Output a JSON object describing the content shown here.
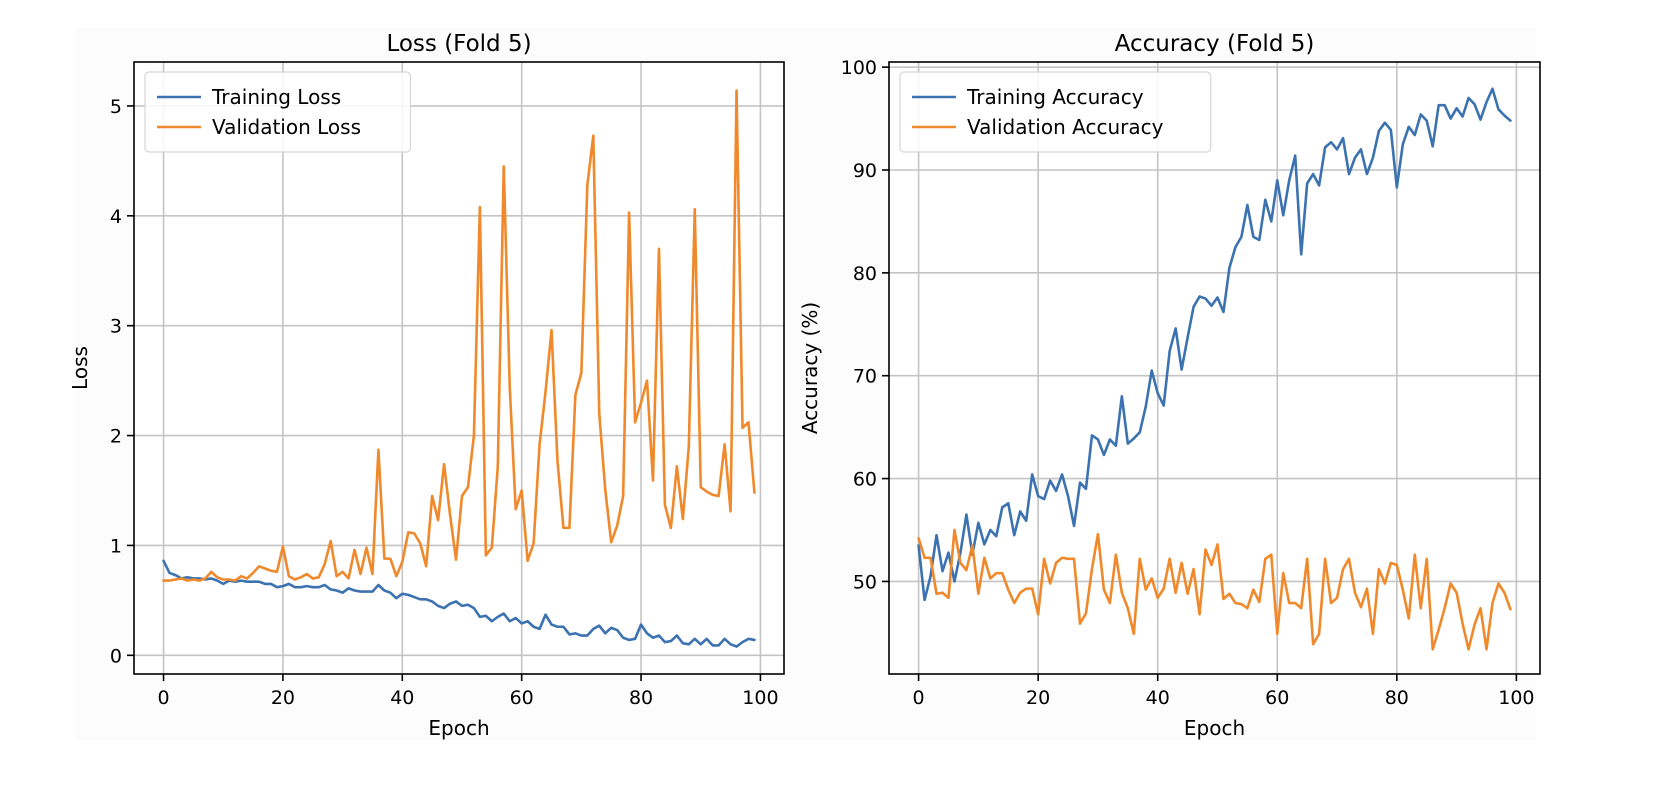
{
  "chart_data": [
    {
      "type": "line",
      "title": "Loss (Fold 5)",
      "xlabel": "Epoch",
      "ylabel": "Loss",
      "xlim": [
        -4.95,
        103.95
      ],
      "ylim": [
        -0.17,
        5.4
      ],
      "xticks": [
        0,
        20,
        40,
        60,
        80,
        100
      ],
      "yticks": [
        0,
        1,
        2,
        3,
        4,
        5
      ],
      "grid": true,
      "legend_position": "upper left",
      "series": [
        {
          "name": "Training Loss",
          "color": "#3c72b0",
          "x_start": 0,
          "x_step": 1,
          "values": [
            0.86,
            0.75,
            0.73,
            0.7,
            0.71,
            0.7,
            0.7,
            0.69,
            0.7,
            0.68,
            0.65,
            0.68,
            0.67,
            0.68,
            0.67,
            0.67,
            0.67,
            0.65,
            0.65,
            0.62,
            0.63,
            0.65,
            0.62,
            0.62,
            0.63,
            0.62,
            0.62,
            0.64,
            0.6,
            0.59,
            0.57,
            0.61,
            0.59,
            0.58,
            0.58,
            0.58,
            0.64,
            0.59,
            0.57,
            0.52,
            0.56,
            0.55,
            0.53,
            0.51,
            0.51,
            0.49,
            0.45,
            0.43,
            0.47,
            0.49,
            0.45,
            0.46,
            0.43,
            0.35,
            0.36,
            0.31,
            0.35,
            0.38,
            0.31,
            0.34,
            0.29,
            0.31,
            0.26,
            0.24,
            0.37,
            0.28,
            0.26,
            0.26,
            0.19,
            0.2,
            0.18,
            0.18,
            0.24,
            0.27,
            0.2,
            0.25,
            0.23,
            0.16,
            0.14,
            0.15,
            0.28,
            0.2,
            0.16,
            0.18,
            0.12,
            0.13,
            0.18,
            0.11,
            0.1,
            0.15,
            0.1,
            0.15,
            0.09,
            0.09,
            0.15,
            0.1,
            0.08,
            0.12,
            0.15,
            0.14
          ]
        },
        {
          "name": "Validation Loss",
          "color": "#f0892b",
          "x_start": 0,
          "x_step": 1,
          "values": [
            0.68,
            0.68,
            0.69,
            0.7,
            0.68,
            0.69,
            0.68,
            0.7,
            0.76,
            0.71,
            0.69,
            0.69,
            0.68,
            0.72,
            0.7,
            0.75,
            0.81,
            0.79,
            0.77,
            0.76,
            0.99,
            0.72,
            0.69,
            0.71,
            0.74,
            0.7,
            0.71,
            0.83,
            1.04,
            0.72,
            0.76,
            0.7,
            0.96,
            0.74,
            0.98,
            0.74,
            1.87,
            0.88,
            0.88,
            0.72,
            0.85,
            1.12,
            1.11,
            1.02,
            0.81,
            1.45,
            1.23,
            1.74,
            1.28,
            0.87,
            1.45,
            1.53,
            2.0,
            4.08,
            0.91,
            0.98,
            1.72,
            4.45,
            2.44,
            1.33,
            1.5,
            0.86,
            1.02,
            1.92,
            2.4,
            2.96,
            1.77,
            1.16,
            1.16,
            2.37,
            2.57,
            4.28,
            4.73,
            2.2,
            1.51,
            1.03,
            1.18,
            1.45,
            4.03,
            2.12,
            2.3,
            2.5,
            1.59,
            3.7,
            1.37,
            1.16,
            1.72,
            1.24,
            1.9,
            4.06,
            1.53,
            1.49,
            1.46,
            1.45,
            1.92,
            1.31,
            5.14,
            2.07,
            2.12,
            1.48
          ]
        }
      ]
    },
    {
      "type": "line",
      "title": "Accuracy (Fold 5)",
      "xlabel": "Epoch",
      "ylabel": "Accuracy (%)",
      "xlim": [
        -4.95,
        103.95
      ],
      "ylim": [
        41.0,
        100.5
      ],
      "xticks": [
        0,
        20,
        40,
        60,
        80,
        100
      ],
      "yticks": [
        50,
        60,
        70,
        80,
        90,
        100
      ],
      "grid": true,
      "legend_position": "upper left",
      "series": [
        {
          "name": "Training Accuracy",
          "color": "#3c72b0",
          "x_start": 0,
          "x_step": 1,
          "values": [
            53.5,
            48.2,
            50.5,
            54.5,
            51.0,
            52.8,
            50.0,
            52.8,
            56.5,
            52.6,
            55.7,
            53.6,
            55.0,
            54.4,
            57.2,
            57.6,
            54.5,
            56.8,
            55.9,
            60.4,
            58.3,
            58.0,
            59.8,
            58.8,
            60.4,
            58.3,
            55.4,
            59.6,
            59.0,
            64.2,
            63.8,
            62.3,
            63.8,
            63.2,
            68.0,
            63.4,
            63.9,
            64.5,
            67.0,
            70.5,
            68.3,
            67.1,
            72.4,
            74.6,
            70.6,
            73.7,
            76.7,
            77.7,
            77.5,
            76.8,
            77.6,
            76.2,
            80.5,
            82.5,
            83.5,
            86.6,
            83.5,
            83.2,
            87.1,
            85.0,
            89.0,
            85.6,
            89.0,
            91.4,
            81.8,
            88.7,
            89.6,
            88.5,
            92.2,
            92.7,
            92.0,
            93.1,
            89.6,
            91.2,
            92.0,
            89.6,
            91.2,
            93.8,
            94.6,
            93.9,
            88.3,
            92.5,
            94.2,
            93.4,
            95.4,
            94.8,
            92.3,
            96.3,
            96.3,
            95.0,
            96.0,
            95.2,
            97.0,
            96.4,
            94.9,
            96.6,
            97.9,
            95.9,
            95.3,
            94.8
          ]
        },
        {
          "name": "Validation Accuracy",
          "color": "#f0892b",
          "x_start": 0,
          "x_step": 1,
          "values": [
            54.2,
            52.3,
            52.3,
            48.8,
            48.9,
            48.4,
            55.0,
            51.8,
            51.1,
            53.5,
            48.8,
            52.3,
            50.3,
            50.8,
            50.8,
            49.2,
            47.9,
            48.9,
            49.3,
            49.3,
            46.8,
            52.2,
            49.8,
            51.8,
            52.3,
            52.2,
            52.2,
            45.9,
            46.9,
            51.2,
            54.6,
            49.2,
            47.9,
            52.6,
            48.9,
            47.4,
            44.9,
            52.2,
            49.2,
            50.3,
            48.4,
            49.3,
            52.2,
            48.9,
            51.8,
            48.8,
            51.2,
            46.8,
            53.1,
            51.6,
            53.6,
            48.3,
            48.8,
            47.9,
            47.8,
            47.4,
            49.2,
            48.0,
            52.2,
            52.6,
            44.9,
            50.8,
            47.9,
            47.9,
            47.4,
            52.2,
            43.9,
            44.9,
            52.2,
            47.9,
            48.4,
            51.2,
            52.2,
            48.9,
            47.5,
            49.3,
            44.9,
            51.2,
            49.8,
            51.8,
            51.6,
            49.2,
            46.4,
            52.6,
            47.4,
            52.2,
            43.4,
            45.3,
            47.4,
            49.8,
            48.9,
            45.9,
            43.4,
            45.8,
            47.4,
            43.4,
            47.9,
            49.8,
            48.9,
            47.3
          ]
        }
      ]
    }
  ]
}
